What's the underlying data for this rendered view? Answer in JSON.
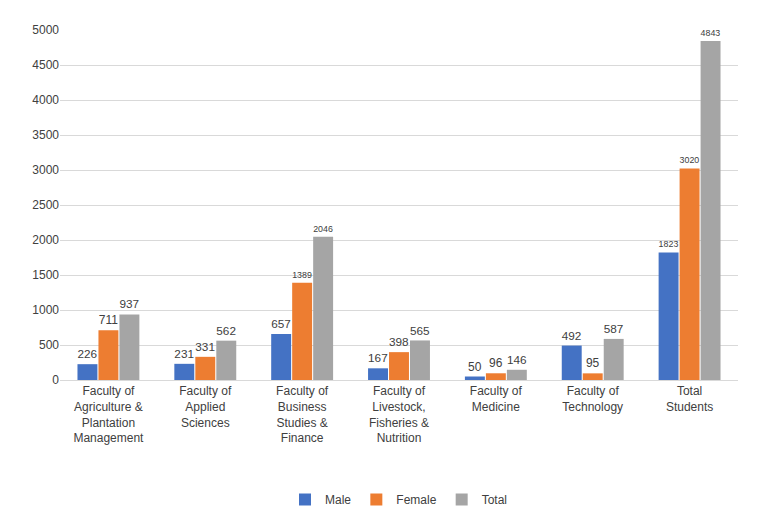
{
  "chart_data": {
    "type": "bar",
    "categories": [
      "Faculty of Agriculture & Plantation Management",
      "Faculty of Applied Sciences",
      "Faculty of Business Studies & Finance",
      "Faculty of Livestock, Fisheries & Nutrition",
      "Faculty of Medicine",
      "Faculty of Technology",
      "Total Students"
    ],
    "series": [
      {
        "name": "Male",
        "color": "#4472c4",
        "values": [
          226,
          231,
          657,
          167,
          50,
          492,
          1823
        ]
      },
      {
        "name": "Female",
        "color": "#ed7d31",
        "values": [
          711,
          331,
          1389,
          398,
          96,
          95,
          3020
        ]
      },
      {
        "name": "Total",
        "color": "#a5a5a5",
        "values": [
          937,
          562,
          2046,
          565,
          146,
          587,
          4843
        ]
      }
    ],
    "ylim": [
      0,
      5000
    ],
    "yticks": [
      0,
      500,
      1000,
      1500,
      2000,
      2500,
      3000,
      3500,
      4000,
      4500,
      5000
    ],
    "grid": true,
    "legend": "bottom",
    "data_labels": true
  }
}
